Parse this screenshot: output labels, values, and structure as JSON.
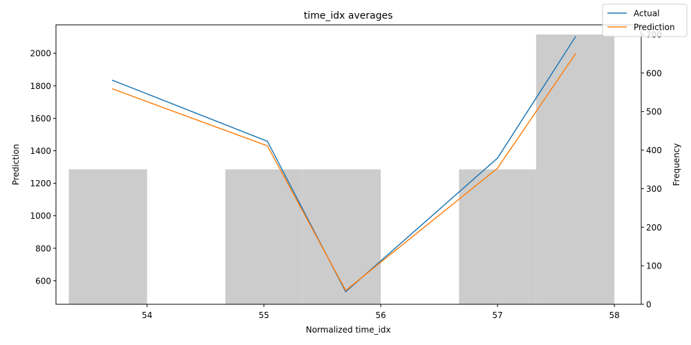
{
  "chart_data": {
    "type": "line",
    "title": "time_idx averages",
    "xlabel": "Normalized time_idx",
    "ylabel": "Prediction",
    "y2label": "Frequency",
    "xlim": [
      53.22,
      58.23
    ],
    "ylim": [
      455,
      2175
    ],
    "y2lim": [
      0,
      725
    ],
    "x_ticks": [
      54,
      55,
      56,
      57,
      58
    ],
    "y_ticks": [
      600,
      800,
      1000,
      1200,
      1400,
      1600,
      1800,
      2000
    ],
    "y2_ticks": [
      0,
      100,
      200,
      300,
      400,
      500,
      600,
      700
    ],
    "series": [
      {
        "name": "Actual",
        "color": "#1f77b4",
        "points": [
          {
            "x": 53.7,
            "y": 1835
          },
          {
            "x": 55.03,
            "y": 1458
          },
          {
            "x": 55.7,
            "y": 532
          },
          {
            "x": 57.0,
            "y": 1355
          },
          {
            "x": 57.67,
            "y": 2105
          }
        ]
      },
      {
        "name": "Prediction",
        "color": "#ff7f0e",
        "points": [
          {
            "x": 53.7,
            "y": 1782
          },
          {
            "x": 55.03,
            "y": 1430
          },
          {
            "x": 55.7,
            "y": 540
          },
          {
            "x": 57.0,
            "y": 1293
          },
          {
            "x": 57.67,
            "y": 2000
          }
        ]
      }
    ],
    "histogram": {
      "color": "#cccccc",
      "bins": [
        {
          "x0": 53.33,
          "x1": 54.0,
          "count": 350
        },
        {
          "x0": 54.0,
          "x1": 54.67,
          "count": 0
        },
        {
          "x0": 54.67,
          "x1": 55.33,
          "count": 350
        },
        {
          "x0": 55.33,
          "x1": 56.0,
          "count": 350
        },
        {
          "x0": 56.0,
          "x1": 56.67,
          "count": 0
        },
        {
          "x0": 56.67,
          "x1": 57.33,
          "count": 350
        },
        {
          "x0": 57.33,
          "x1": 58.0,
          "count": 700
        }
      ]
    },
    "legend": [
      "Actual",
      "Prediction"
    ],
    "legend_position": "top-right",
    "grid": false
  }
}
